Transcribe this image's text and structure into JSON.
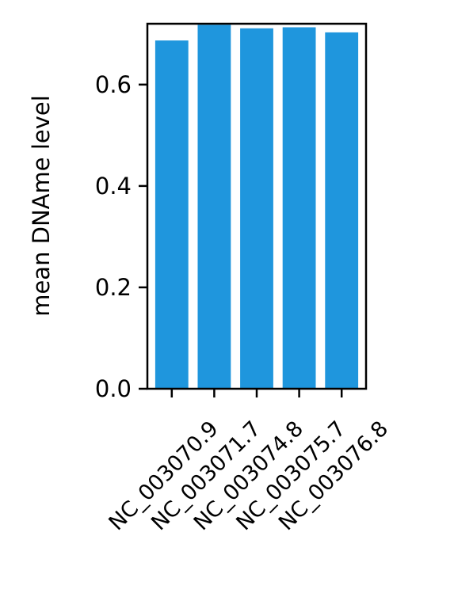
{
  "chart_data": {
    "type": "bar",
    "categories": [
      "NC_003070.9",
      "NC_003071.7",
      "NC_003074.8",
      "NC_003075.7",
      "NC_003076.8"
    ],
    "values": [
      0.687,
      0.718,
      0.711,
      0.713,
      0.703
    ],
    "xlabel": "",
    "ylabel": "mean DNAme level",
    "ylim": [
      0,
      0.72
    ],
    "yticks": [
      0.0,
      0.2,
      0.4,
      0.6
    ],
    "ytick_labels": [
      "0.0",
      "0.2",
      "0.4",
      "0.6"
    ],
    "grid": false,
    "bar_color": "#1f96dd"
  }
}
